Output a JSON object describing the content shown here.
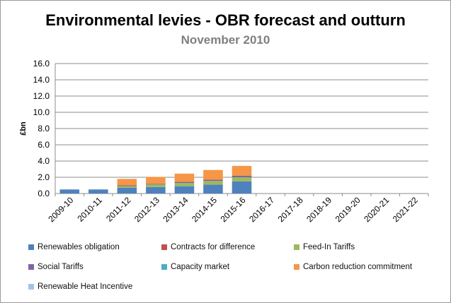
{
  "chart_data": {
    "type": "bar",
    "stacked": true,
    "title": "Environmental levies - OBR forecast and outturn",
    "subtitle": "November 2010",
    "ylabel": "£bn",
    "xlabel": "",
    "ylim": [
      0,
      16
    ],
    "yticks": [
      "0.0",
      "2.0",
      "4.0",
      "6.0",
      "8.0",
      "10.0",
      "12.0",
      "14.0",
      "16.0"
    ],
    "grid": true,
    "legend_position": "bottom",
    "categories": [
      "2009-10",
      "2010-11",
      "2011-12",
      "2012-13",
      "2013-14",
      "2014-15",
      "2015-16",
      "2016-17",
      "2017-18",
      "2018-19",
      "2019-20",
      "2020-21",
      "2021-22"
    ],
    "series": [
      {
        "name": "Renewables obligation",
        "color": "#4f81bd",
        "values": [
          0.5,
          0.5,
          0.7,
          0.8,
          0.9,
          1.1,
          1.5,
          0,
          0,
          0,
          0,
          0,
          0
        ]
      },
      {
        "name": "Contracts for difference",
        "color": "#c0504d",
        "values": [
          0,
          0,
          0,
          0,
          0,
          0,
          0,
          0,
          0,
          0,
          0,
          0,
          0
        ]
      },
      {
        "name": "Feed-In Tariffs",
        "color": "#9bbb59",
        "values": [
          0,
          0,
          0.2,
          0.3,
          0.4,
          0.45,
          0.5,
          0,
          0,
          0,
          0,
          0,
          0
        ]
      },
      {
        "name": "Social Tariffs",
        "color": "#8064a2",
        "values": [
          0,
          0,
          0.1,
          0.1,
          0.15,
          0.15,
          0.2,
          0,
          0,
          0,
          0,
          0,
          0
        ]
      },
      {
        "name": "Capacity market",
        "color": "#4bacc6",
        "values": [
          0,
          0,
          0,
          0,
          0,
          0,
          0,
          0,
          0,
          0,
          0,
          0,
          0
        ]
      },
      {
        "name": "Carbon reduction commitment",
        "color": "#f79646",
        "values": [
          0,
          0,
          0.8,
          0.85,
          1.0,
          1.2,
          1.2,
          0,
          0,
          0,
          0,
          0,
          0
        ]
      },
      {
        "name": "Renewable Heat Incentive",
        "color": "#a5c2e8",
        "values": [
          0,
          0,
          0,
          0,
          0,
          0,
          0,
          0,
          0,
          0,
          0,
          0,
          0
        ]
      }
    ]
  }
}
